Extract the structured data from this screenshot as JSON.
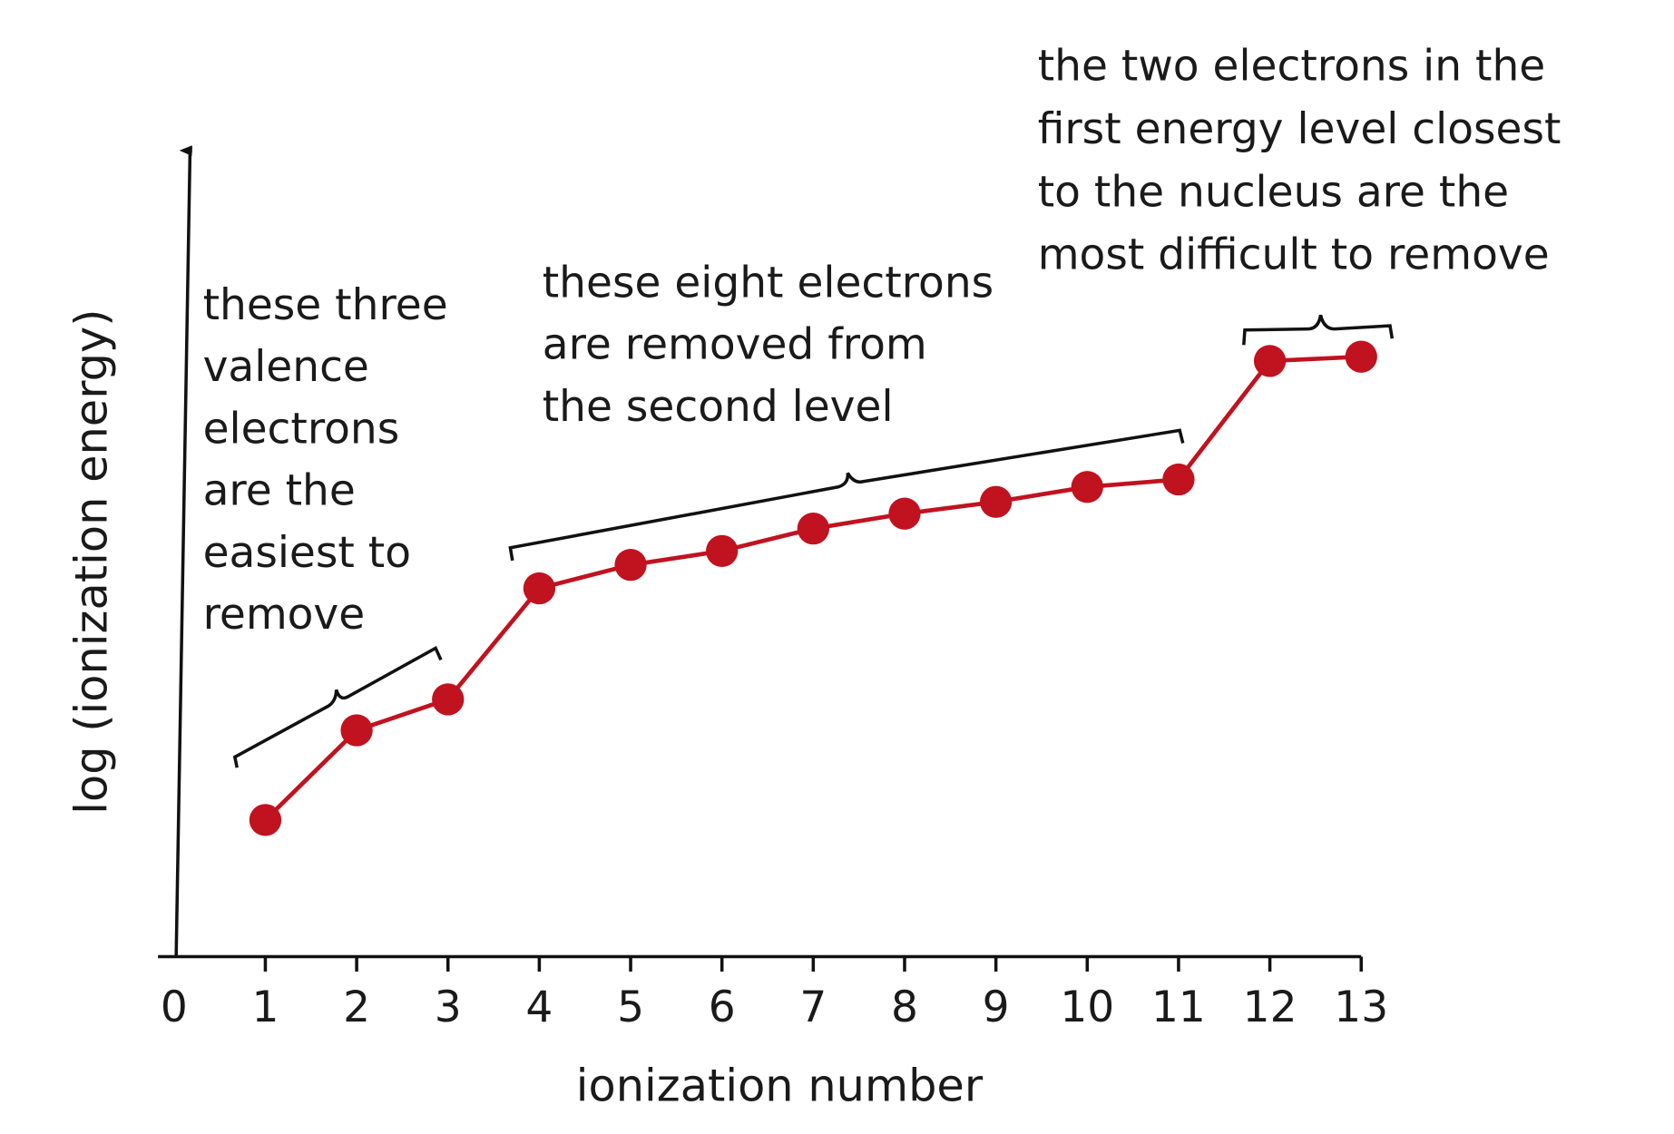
{
  "chart_data": {
    "type": "line",
    "x_label": "ionization number",
    "y_label": "log (ionization energy)",
    "x": [
      1,
      2,
      3,
      4,
      5,
      6,
      7,
      8,
      9,
      10,
      11,
      12,
      13
    ],
    "series": [
      {
        "name": "ionization energy",
        "color": "#c1121f",
        "values": [
          128,
          212,
          241,
          345,
          367,
          380,
          401,
          415,
          426,
          440,
          447,
          558,
          562
        ]
      }
    ],
    "xlim": [
      0,
      13
    ],
    "xticks": [
      0,
      1,
      2,
      3,
      4,
      5,
      6,
      7,
      8,
      9,
      10,
      11,
      12,
      13
    ],
    "ylim": [
      0,
      760
    ],
    "annotations": [
      [
        "these three",
        "valence",
        "electrons",
        "are the",
        "easiest to",
        "remove"
      ],
      [
        "these eight electrons",
        "are removed from",
        "the second level"
      ],
      [
        "the two electrons in the",
        "first energy level closest",
        "to the nucleus are the",
        "most difficult to remove"
      ]
    ]
  }
}
